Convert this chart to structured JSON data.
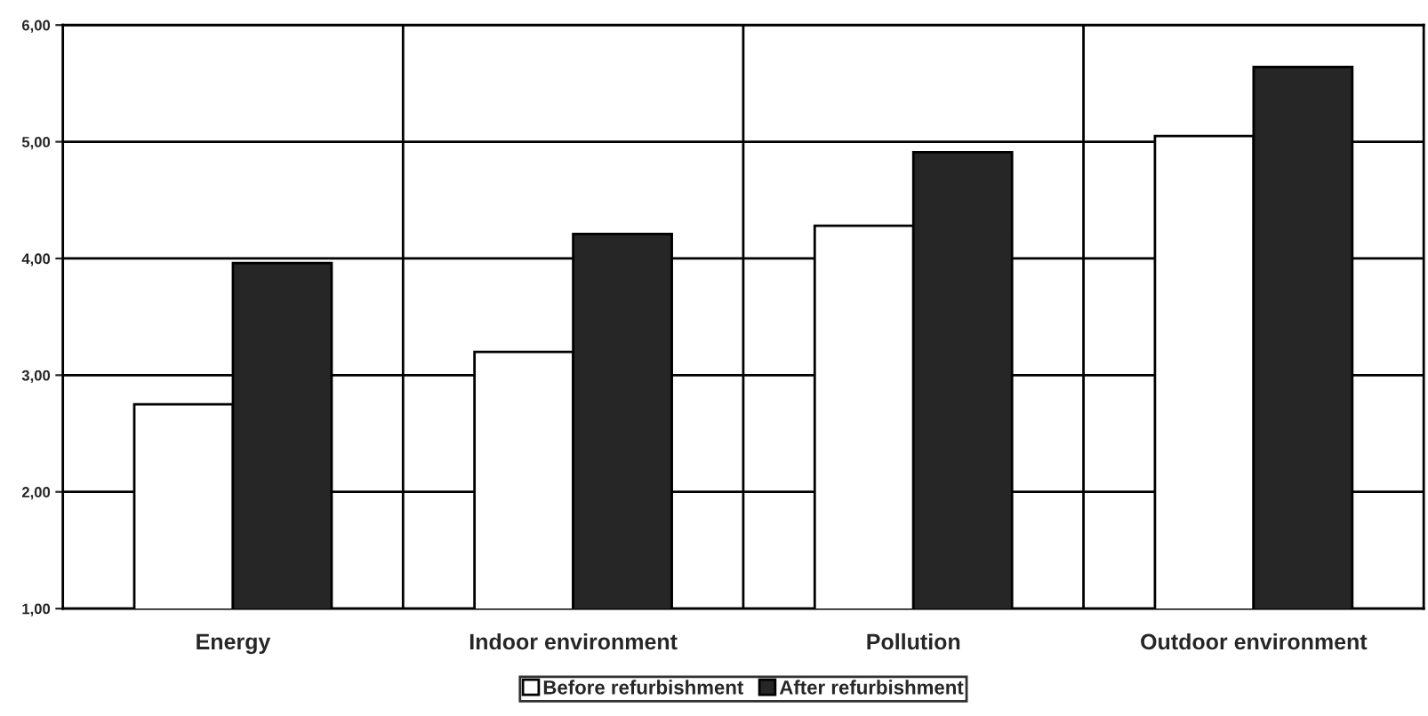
{
  "chart_data": {
    "type": "bar",
    "categories": [
      "Energy",
      "Indoor environment",
      "Pollution",
      "Outdoor environment"
    ],
    "series": [
      {
        "name": "Before refurbishment",
        "color": "#ffffff",
        "values": [
          2.75,
          3.2,
          4.28,
          5.05
        ]
      },
      {
        "name": "After refurbishment",
        "color": "#262626",
        "values": [
          3.96,
          4.21,
          4.91,
          5.64
        ]
      }
    ],
    "ylim": [
      1,
      6
    ],
    "yticks": [
      {
        "value": 1,
        "label": "1,00"
      },
      {
        "value": 2,
        "label": "2,00"
      },
      {
        "value": 3,
        "label": "3,00"
      },
      {
        "value": 4,
        "label": "4,00"
      },
      {
        "value": 5,
        "label": "5,00"
      },
      {
        "value": 6,
        "label": "6,00"
      }
    ],
    "grid": true,
    "legend": "bottom"
  }
}
